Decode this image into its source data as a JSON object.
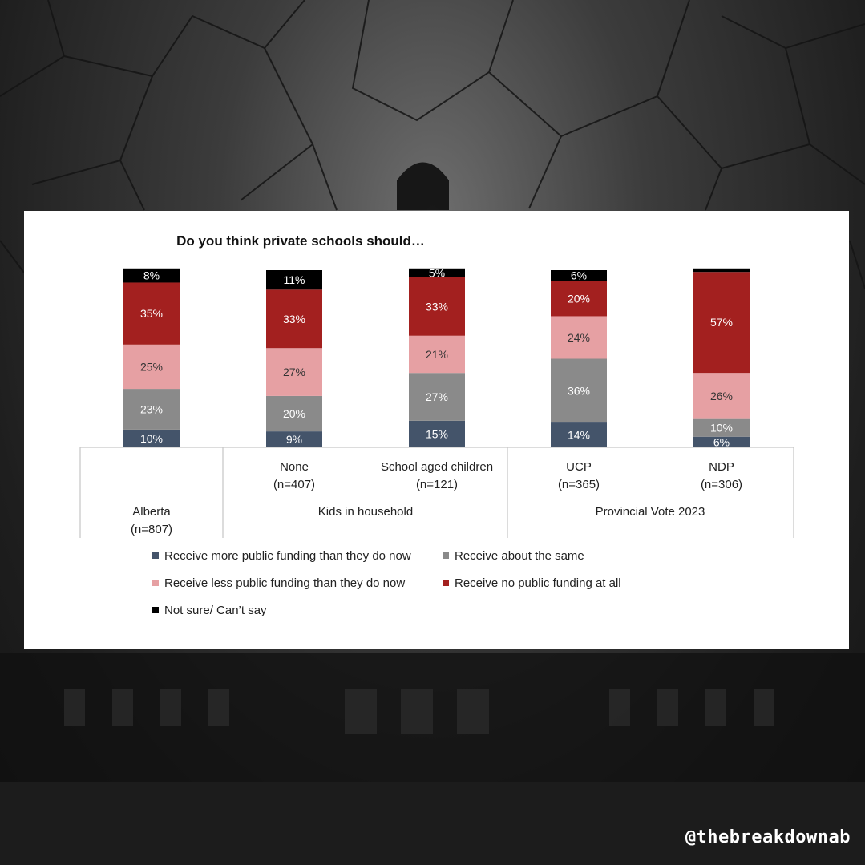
{
  "watermark": "@thebreakdownab",
  "chart_data": {
    "type": "bar",
    "stacked": true,
    "title": "Do you think private schools should…",
    "bars": [
      {
        "label": "Alberta",
        "sub": "(n=807)"
      },
      {
        "label": "None",
        "sub": "(n=407)"
      },
      {
        "label": "School aged children",
        "sub": "(n=121)"
      },
      {
        "label": "UCP",
        "sub": "(n=365)"
      },
      {
        "label": "NDP",
        "sub": "(n=306)"
      }
    ],
    "groups": [
      {
        "label": "Kids in household"
      },
      {
        "label": "Provincial Vote 2023"
      }
    ],
    "series": [
      {
        "name": "Receive more public funding than they do now",
        "color": "#44546a",
        "text_color": "#ffffff",
        "values": [
          10,
          9,
          15,
          14,
          6
        ],
        "labels": [
          "10%",
          "9%",
          "15%",
          "14%",
          "6%"
        ]
      },
      {
        "name": "Receive about the same",
        "color": "#8a8a8a",
        "text_color": "#ffffff",
        "values": [
          23,
          20,
          27,
          36,
          10
        ],
        "labels": [
          "23%",
          "20%",
          "27%",
          "36%",
          "10%"
        ]
      },
      {
        "name": "Receive less public funding than they do now",
        "color": "#e6a0a3",
        "text_color": "#333333",
        "values": [
          25,
          27,
          21,
          24,
          26
        ],
        "labels": [
          "25%",
          "27%",
          "21%",
          "24%",
          "26%"
        ]
      },
      {
        "name": "Receive no public funding at all",
        "color": "#a3201f",
        "text_color": "#ffffff",
        "values": [
          35,
          33,
          33,
          20,
          57
        ],
        "labels": [
          "35%",
          "33%",
          "33%",
          "20%",
          "57%"
        ]
      },
      {
        "name": "Not sure/ Can’t say",
        "color": "#000000",
        "text_color": "#ffffff",
        "values": [
          8,
          11,
          5,
          6,
          2
        ],
        "labels": [
          "8%",
          "11%",
          "5%",
          "6%",
          ""
        ]
      }
    ],
    "ylim": [
      0,
      100
    ],
    "legend_position": "bottom"
  }
}
